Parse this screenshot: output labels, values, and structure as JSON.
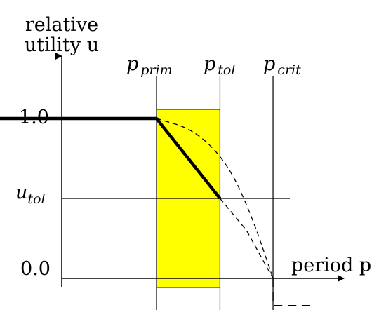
{
  "chart_data": {
    "type": "line",
    "ylabel_line1": "relative",
    "ylabel_line2": "utility u",
    "xlabel": "period p",
    "yticks": [
      {
        "label": "1.0",
        "value": 1.0
      },
      {
        "label": "0.0",
        "value": 0.0
      }
    ],
    "u_tol": {
      "symbol": "u",
      "subscript": "tol",
      "value": 0.5
    },
    "markers": [
      {
        "symbol": "p",
        "subscript": "prim",
        "value": 1.0
      },
      {
        "symbol": "p",
        "subscript": "tol",
        "value": 1.67
      },
      {
        "symbol": "p",
        "subscript": "crit",
        "value": 2.23
      }
    ],
    "tolerance_band": {
      "from": 1.0,
      "to": 1.67,
      "color": "#ffff00"
    },
    "series": [
      {
        "style": "solid-thick",
        "points": [
          [
            -1.0,
            1.0
          ],
          [
            0.0,
            1.0
          ],
          [
            1.0,
            1.0
          ],
          [
            1.67,
            0.5
          ]
        ]
      },
      {
        "style": "dashed",
        "points": [
          [
            1.0,
            1.0
          ],
          [
            1.4,
            0.93
          ],
          [
            1.75,
            0.72
          ],
          [
            2.0,
            0.4
          ],
          [
            2.23,
            0.0
          ]
        ]
      },
      {
        "style": "dashed",
        "points": [
          [
            1.67,
            0.5
          ],
          [
            1.95,
            0.3
          ],
          [
            2.23,
            0.0
          ]
        ]
      },
      {
        "style": "dashed",
        "points": [
          [
            2.23,
            0.0
          ],
          [
            2.23,
            -0.17
          ],
          [
            2.62,
            -0.17
          ]
        ]
      }
    ],
    "colors": {
      "axis": "#000000",
      "band": "#ffff00",
      "line": "#000000"
    }
  }
}
